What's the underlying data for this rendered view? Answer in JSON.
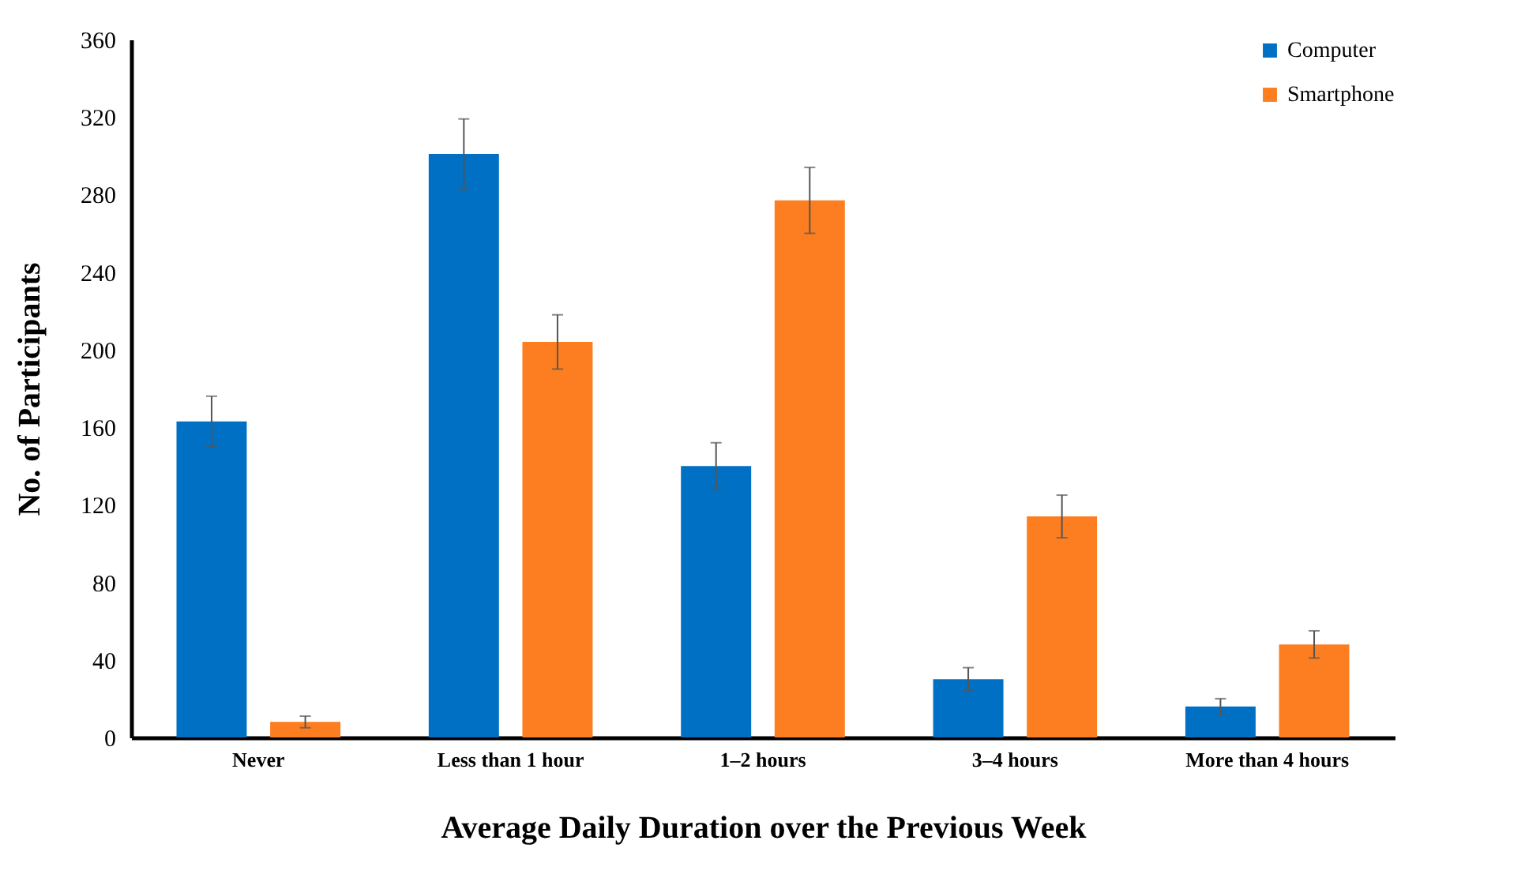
{
  "chart_data": {
    "type": "bar",
    "xlabel": "Average Daily Duration over the Previous Week",
    "ylabel": "No. of Participants",
    "categories": [
      "Never",
      "Less than 1 hour",
      "1–2 hours",
      "3–4 hours",
      "More than 4 hours"
    ],
    "series": [
      {
        "name": "Computer",
        "color": "#0070c5",
        "values": [
          163,
          301,
          140,
          30,
          16
        ],
        "errors": [
          13,
          18,
          12,
          6,
          4
        ]
      },
      {
        "name": "Smartphone",
        "color": "#fd7e20",
        "values": [
          8,
          204,
          277,
          114,
          48
        ],
        "errors": [
          3,
          14,
          17,
          11,
          7
        ]
      }
    ],
    "ylim": [
      0,
      360
    ],
    "yticks": [
      0,
      40,
      80,
      120,
      160,
      200,
      240,
      280,
      320,
      360
    ],
    "grid": false,
    "legend": "top right"
  }
}
